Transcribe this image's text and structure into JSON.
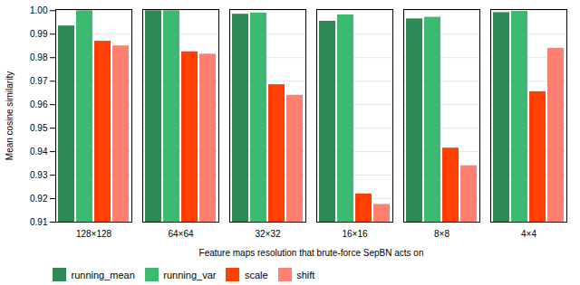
{
  "chart_data": {
    "type": "bar",
    "categories": [
      "128×128",
      "64×64",
      "32×32",
      "16×16",
      "8×8",
      "4×4"
    ],
    "series": [
      {
        "name": "running_mean",
        "color": "#2d8a56",
        "values": [
          0.9935,
          1.0,
          0.9985,
          0.9955,
          0.9965,
          0.9992
        ]
      },
      {
        "name": "running_var",
        "color": "#3dba72",
        "values": [
          1.0,
          1.0,
          0.999,
          0.9982,
          0.9972,
          0.9997
        ]
      },
      {
        "name": "scale",
        "color": "#ff4000",
        "values": [
          0.987,
          0.9825,
          0.9685,
          0.922,
          0.9415,
          0.9655
        ]
      },
      {
        "name": "shift",
        "color": "#ff8070",
        "values": [
          0.985,
          0.9815,
          0.964,
          0.9175,
          0.934,
          0.984
        ]
      }
    ],
    "xlabel": "Feature maps resolution that brute-force SepBN acts on",
    "ylabel": "Mean cosine similarity",
    "ylim": [
      0.91,
      1.0005
    ],
    "yticks": [
      0.91,
      0.92,
      0.93,
      0.94,
      0.95,
      0.96,
      0.97,
      0.98,
      0.99,
      {
        "value": 1.0,
        "label": "1.00"
      }
    ],
    "grid": true,
    "legend": "lower left"
  }
}
